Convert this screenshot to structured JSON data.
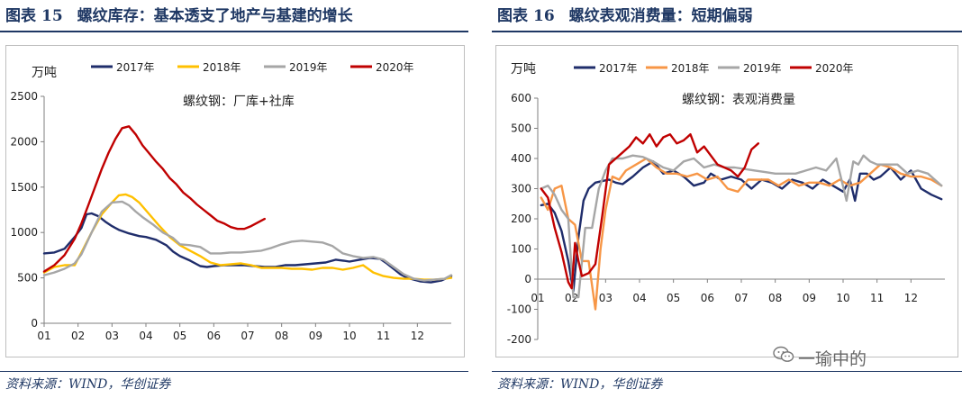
{
  "left": {
    "fig_label": "图表",
    "fig_number": "15",
    "title": "螺纹库存：基本透支了地产与基建的增长",
    "source": "资料来源：WIND，华创证券",
    "chart_data": {
      "type": "line",
      "ylabel": "万吨",
      "annotation": "螺纹钢：厂库+社库",
      "ylim": [
        0,
        2500
      ],
      "yticks": [
        0,
        500,
        1000,
        1500,
        2000,
        2500
      ],
      "xlim": [
        1,
        13
      ],
      "xticks": [
        "01",
        "02",
        "03",
        "04",
        "05",
        "06",
        "07",
        "08",
        "09",
        "10",
        "11",
        "12"
      ],
      "series": [
        {
          "name": "2017年",
          "color": "#1f2d6b",
          "x": [
            1,
            1.3,
            1.6,
            1.9,
            2.1,
            2.25,
            2.4,
            2.6,
            2.8,
            3.0,
            3.2,
            3.5,
            3.8,
            4.0,
            4.3,
            4.6,
            4.8,
            5.0,
            5.3,
            5.6,
            5.8,
            6.0,
            6.3,
            6.6,
            6.9,
            7.2,
            7.5,
            7.8,
            8.1,
            8.4,
            8.7,
            9.0,
            9.3,
            9.6,
            9.8,
            10.0,
            10.3,
            10.6,
            10.9,
            11.1,
            11.3,
            11.5,
            11.7,
            11.9,
            12.1,
            12.4,
            12.7,
            13.0
          ],
          "y": [
            770,
            780,
            820,
            950,
            1050,
            1200,
            1210,
            1180,
            1120,
            1070,
            1030,
            990,
            960,
            950,
            920,
            860,
            790,
            740,
            690,
            630,
            620,
            630,
            640,
            640,
            640,
            630,
            620,
            620,
            640,
            640,
            650,
            660,
            670,
            700,
            690,
            680,
            700,
            720,
            710,
            660,
            600,
            540,
            500,
            480,
            460,
            450,
            470,
            520
          ]
        },
        {
          "name": "2018年",
          "color": "#ffc000",
          "x": [
            1,
            1.3,
            1.6,
            1.9,
            2.1,
            2.4,
            2.7,
            3.0,
            3.2,
            3.4,
            3.6,
            3.8,
            4.1,
            4.4,
            4.7,
            5.0,
            5.3,
            5.6,
            5.9,
            6.2,
            6.5,
            6.8,
            7.1,
            7.4,
            7.7,
            8.0,
            8.3,
            8.6,
            8.9,
            9.2,
            9.5,
            9.8,
            10.1,
            10.4,
            10.7,
            11.0,
            11.3,
            11.6,
            11.9,
            12.2,
            12.5,
            12.8,
            13.0
          ],
          "y": [
            560,
            620,
            640,
            640,
            780,
            1000,
            1200,
            1330,
            1410,
            1420,
            1390,
            1330,
            1200,
            1070,
            950,
            860,
            800,
            740,
            670,
            640,
            650,
            660,
            640,
            610,
            610,
            610,
            600,
            600,
            590,
            610,
            610,
            590,
            610,
            640,
            560,
            520,
            500,
            490,
            490,
            480,
            480,
            490,
            500
          ]
        },
        {
          "name": "2019年",
          "color": "#a6a6a6",
          "x": [
            1,
            1.3,
            1.6,
            1.9,
            2.1,
            2.4,
            2.7,
            3.0,
            3.3,
            3.5,
            3.7,
            3.9,
            4.2,
            4.5,
            4.8,
            5.0,
            5.3,
            5.6,
            5.9,
            6.2,
            6.5,
            6.8,
            7.1,
            7.4,
            7.7,
            8.0,
            8.3,
            8.6,
            8.9,
            9.2,
            9.5,
            9.8,
            10.1,
            10.4,
            10.7,
            11.0,
            11.3,
            11.6,
            11.9,
            12.2,
            12.5,
            12.8,
            13.0
          ],
          "y": [
            530,
            560,
            600,
            660,
            760,
            1000,
            1230,
            1330,
            1340,
            1300,
            1230,
            1170,
            1090,
            1000,
            940,
            870,
            860,
            840,
            770,
            770,
            780,
            780,
            790,
            800,
            830,
            870,
            900,
            910,
            900,
            890,
            850,
            770,
            740,
            720,
            730,
            700,
            620,
            540,
            490,
            470,
            480,
            490,
            530
          ]
        },
        {
          "name": "2020年",
          "color": "#c00000",
          "x": [
            1,
            1.3,
            1.6,
            1.9,
            2.1,
            2.3,
            2.5,
            2.7,
            2.9,
            3.1,
            3.3,
            3.5,
            3.7,
            3.9,
            4.1,
            4.3,
            4.5,
            4.7,
            4.9,
            5.1,
            5.3,
            5.5,
            5.7,
            5.9,
            6.1,
            6.3,
            6.5,
            6.7,
            6.9,
            7.1,
            7.3,
            7.5
          ],
          "y": [
            570,
            640,
            750,
            930,
            1100,
            1300,
            1500,
            1700,
            1880,
            2030,
            2150,
            2170,
            2080,
            1960,
            1870,
            1780,
            1700,
            1600,
            1530,
            1440,
            1380,
            1310,
            1250,
            1190,
            1130,
            1100,
            1060,
            1040,
            1040,
            1070,
            1110,
            1150
          ]
        }
      ]
    }
  },
  "right": {
    "fig_label": "图表",
    "fig_number": "16",
    "title": "螺纹表观消费量：短期偏弱",
    "source": "资料来源：WIND，华创证券",
    "watermark": "一瑜中的",
    "watermark_icon": "wechat-icon",
    "chart_data": {
      "type": "line",
      "ylabel": "万吨",
      "annotation": "螺纹钢：表观消费量",
      "ylim": [
        -200,
        600
      ],
      "yticks": [
        -200,
        -100,
        0,
        100,
        200,
        300,
        400,
        500,
        600
      ],
      "xlim": [
        1,
        13
      ],
      "xticks": [
        "01",
        "02",
        "03",
        "04",
        "05",
        "06",
        "07",
        "08",
        "09",
        "10",
        "11",
        "12"
      ],
      "series": [
        {
          "name": "2017年",
          "color": "#1f2d6b",
          "x": [
            1.1,
            1.3,
            1.5,
            1.7,
            1.9,
            2.05,
            2.2,
            2.35,
            2.5,
            2.7,
            2.9,
            3.1,
            3.3,
            3.5,
            3.8,
            4.1,
            4.4,
            4.7,
            5.0,
            5.3,
            5.6,
            5.9,
            6.1,
            6.4,
            6.7,
            7.0,
            7.3,
            7.6,
            7.9,
            8.2,
            8.5,
            8.8,
            9.1,
            9.4,
            9.7,
            10.0,
            10.2,
            10.35,
            10.5,
            10.7,
            10.9,
            11.1,
            11.4,
            11.7,
            12.0,
            12.3,
            12.6,
            12.9
          ],
          "y": [
            245,
            250,
            220,
            160,
            60,
            -40,
            140,
            260,
            300,
            320,
            325,
            330,
            320,
            315,
            340,
            370,
            390,
            350,
            360,
            340,
            310,
            320,
            350,
            330,
            340,
            330,
            300,
            330,
            320,
            300,
            330,
            320,
            300,
            330,
            310,
            290,
            330,
            260,
            350,
            350,
            330,
            340,
            370,
            330,
            360,
            300,
            280,
            265
          ]
        },
        {
          "name": "2018年",
          "color": "#f79646",
          "x": [
            1.1,
            1.3,
            1.5,
            1.7,
            1.9,
            2.1,
            2.3,
            2.5,
            2.7,
            2.85,
            3.0,
            3.2,
            3.4,
            3.6,
            3.9,
            4.2,
            4.5,
            4.8,
            5.1,
            5.4,
            5.7,
            6.0,
            6.3,
            6.6,
            6.9,
            7.2,
            7.5,
            7.8,
            8.1,
            8.4,
            8.7,
            9.0,
            9.3,
            9.6,
            9.9,
            10.2,
            10.5,
            10.8,
            11.1,
            11.4,
            11.7,
            12.0,
            12.3,
            12.6,
            12.9
          ],
          "y": [
            270,
            230,
            300,
            310,
            200,
            180,
            60,
            60,
            -100,
            100,
            230,
            340,
            330,
            360,
            380,
            400,
            370,
            350,
            350,
            340,
            350,
            330,
            340,
            300,
            290,
            330,
            330,
            330,
            310,
            330,
            310,
            320,
            320,
            310,
            330,
            310,
            320,
            350,
            380,
            370,
            350,
            340,
            340,
            330,
            310
          ]
        },
        {
          "name": "2019年",
          "color": "#a6a6a6",
          "x": [
            1.1,
            1.3,
            1.5,
            1.7,
            1.9,
            2.05,
            2.2,
            2.4,
            2.6,
            2.8,
            3.0,
            3.2,
            3.5,
            3.8,
            4.1,
            4.4,
            4.7,
            5.0,
            5.3,
            5.6,
            5.9,
            6.2,
            6.5,
            6.8,
            7.1,
            7.4,
            7.7,
            8.0,
            8.3,
            8.6,
            8.9,
            9.2,
            9.5,
            9.8,
            10.1,
            10.3,
            10.45,
            10.6,
            10.8,
            11.0,
            11.3,
            11.6,
            11.9,
            12.2,
            12.5,
            12.9
          ],
          "y": [
            300,
            310,
            280,
            230,
            200,
            -60,
            -60,
            170,
            170,
            300,
            360,
            400,
            400,
            410,
            405,
            390,
            370,
            360,
            390,
            400,
            370,
            380,
            370,
            370,
            365,
            360,
            355,
            350,
            350,
            350,
            360,
            370,
            360,
            400,
            260,
            390,
            380,
            410,
            390,
            380,
            380,
            380,
            350,
            360,
            350,
            310
          ]
        },
        {
          "name": "2020年",
          "color": "#c00000",
          "x": [
            1.1,
            1.3,
            1.5,
            1.7,
            1.9,
            2.0,
            2.1,
            2.2,
            2.3,
            2.5,
            2.7,
            2.9,
            3.1,
            3.3,
            3.5,
            3.7,
            3.9,
            4.1,
            4.3,
            4.5,
            4.7,
            4.9,
            5.1,
            5.3,
            5.5,
            5.7,
            5.9,
            6.1,
            6.3,
            6.5,
            6.7,
            6.9,
            7.1,
            7.3,
            7.5
          ],
          "y": [
            300,
            270,
            170,
            90,
            -10,
            -30,
            120,
            60,
            10,
            20,
            50,
            210,
            380,
            400,
            420,
            440,
            470,
            450,
            480,
            440,
            470,
            480,
            450,
            460,
            480,
            420,
            440,
            410,
            380,
            370,
            360,
            340,
            370,
            430,
            450
          ]
        }
      ]
    }
  }
}
